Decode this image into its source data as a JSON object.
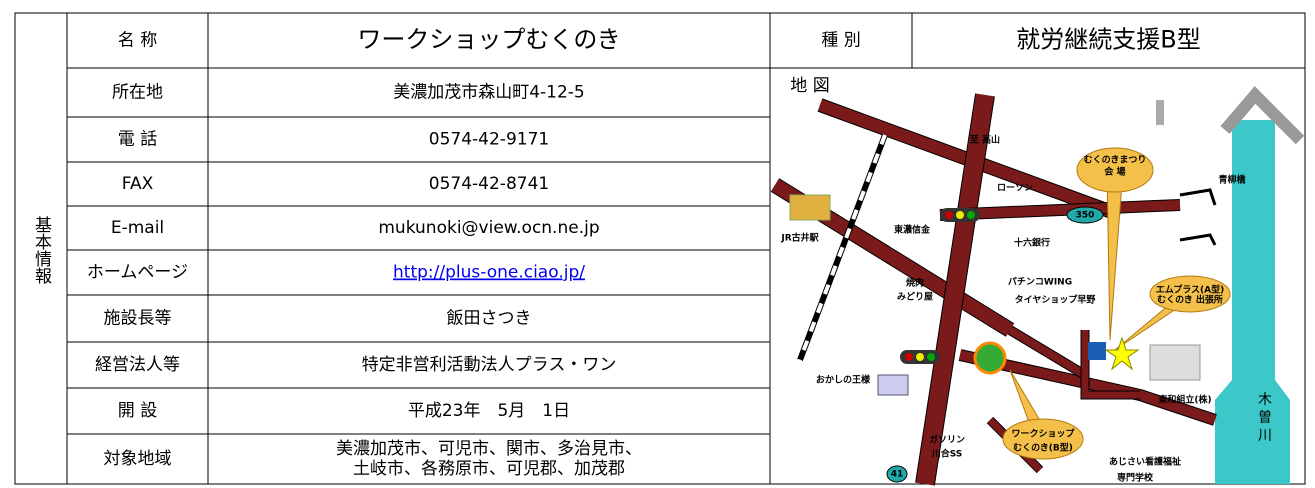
{
  "section_label": "基本情報",
  "header": {
    "name_label": "名 称",
    "name": "ワークショップむくのき",
    "type_label": "種 別",
    "type": "就労継続支援B型"
  },
  "rows": [
    {
      "label": "所在地",
      "value": "美濃加茂市森山町4-12-5"
    },
    {
      "label": "電 話",
      "value": "0574-42-9171"
    },
    {
      "label": "FAX",
      "value": "0574-42-8741"
    },
    {
      "label": "E-mail",
      "value": "mukunoki@view.ocn.ne.jp"
    },
    {
      "label": "ホームページ",
      "value": "http://plus-one.ciao.jp/"
    },
    {
      "label": "施設長等",
      "value": "飯田さつき"
    },
    {
      "label": "経営法人等",
      "value": "特定非営利活動法人プラス・ワン"
    },
    {
      "label": "開 設",
      "value": "平成23年　5月　1日"
    },
    {
      "label": "対象地域",
      "value_lines": [
        "美濃加茂市、可児市、関市、多治見市、",
        "土岐市、各務原市、可児郡、加茂郡"
      ]
    }
  ],
  "map": {
    "label": "地 図",
    "labels": [
      "至 高山",
      "むくのきまつり",
      "会 場",
      "青柳橋",
      "ローソン",
      "350",
      "JR古井駅",
      "東濃信金",
      "十六銀行",
      "焼肉",
      "みどり屋",
      "パチンコWING",
      "タイヤショップ早野",
      "エムプラス(A型)",
      "むくのき 出張所",
      "おかしの王様",
      "東和組立(株)",
      "木",
      "曽",
      "川",
      "ガソリン",
      "川合SS",
      "ワークショップ",
      "むくのき(B型)",
      "あじさい看護福祉",
      "専門学校",
      "41"
    ]
  }
}
